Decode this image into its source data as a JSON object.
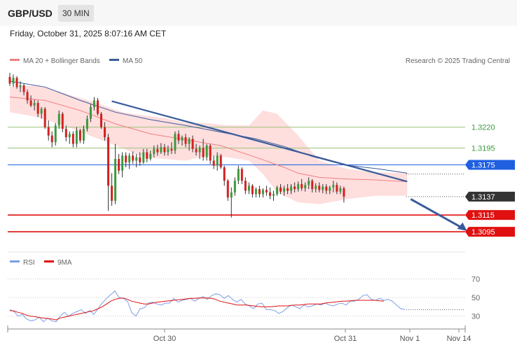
{
  "header": {
    "symbol": "GBP/USD",
    "timeframe": "30 MIN",
    "datetime": "Friday, October 31, 2025 8:07:16 AM CET"
  },
  "legend": {
    "ma20_label": "MA 20 + Bollinger Bands",
    "ma50_label": "MA 50",
    "credit": "Research © 2025 Trading Central",
    "rsi_label": "RSI",
    "rsi_ma_label": "9MA"
  },
  "colors": {
    "bull": "#3c9a3c",
    "bear": "#d32020",
    "ma20": "#f08080",
    "ma50": "#3a5b9a",
    "band_fill": "#ffdede",
    "support": "#e01010",
    "pivot": "#1f5fe0",
    "resistance": "#9cc37a",
    "current": "#333333",
    "trend": "#3a5b9a",
    "rsi": "#7c9ee6",
    "rsi_ma": "#e01010"
  },
  "chart_data": {
    "type": "candlestick",
    "series_note": "Price candles estimated from the figure",
    "ylim": [
      1.3075,
      1.329
    ],
    "levels": [
      {
        "value": 1.322,
        "label": "1.3220",
        "kind": "resistance"
      },
      {
        "value": 1.3195,
        "label": "1.3195",
        "kind": "resistance"
      },
      {
        "value": 1.3175,
        "label": "1.3175",
        "kind": "pivot"
      },
      {
        "value": 1.3137,
        "label": "1.3137",
        "kind": "current"
      },
      {
        "value": 1.3115,
        "label": "1.3115",
        "kind": "support"
      },
      {
        "value": 1.3095,
        "label": "1.3095",
        "kind": "support"
      }
    ],
    "x_ticks": [
      "Oct 30",
      "Oct 31",
      "Nov 1",
      "Nov 14"
    ],
    "candles": [
      [
        1.328,
        1.3285,
        1.3269,
        1.3272
      ],
      [
        1.3272,
        1.3283,
        1.3268,
        1.3279
      ],
      [
        1.3279,
        1.3281,
        1.3266,
        1.3268
      ],
      [
        1.3268,
        1.3275,
        1.3262,
        1.327
      ],
      [
        1.327,
        1.3272,
        1.3258,
        1.3262
      ],
      [
        1.3262,
        1.3265,
        1.3248,
        1.3252
      ],
      [
        1.3252,
        1.3258,
        1.3244,
        1.3246
      ],
      [
        1.3246,
        1.3253,
        1.324,
        1.3249
      ],
      [
        1.3249,
        1.3252,
        1.3232,
        1.3236
      ],
      [
        1.3236,
        1.3244,
        1.323,
        1.3242
      ],
      [
        1.3242,
        1.3244,
        1.3218,
        1.322
      ],
      [
        1.322,
        1.3228,
        1.3204,
        1.321
      ],
      [
        1.321,
        1.3215,
        1.3196,
        1.3202
      ],
      [
        1.3202,
        1.3225,
        1.3198,
        1.3222
      ],
      [
        1.3222,
        1.324,
        1.3218,
        1.3236
      ],
      [
        1.3236,
        1.3238,
        1.3214,
        1.3218
      ],
      [
        1.3218,
        1.3222,
        1.3203,
        1.3208
      ],
      [
        1.3208,
        1.3215,
        1.32,
        1.3212
      ],
      [
        1.3212,
        1.3215,
        1.3196,
        1.32
      ],
      [
        1.32,
        1.322,
        1.3196,
        1.3216
      ],
      [
        1.3216,
        1.3218,
        1.3201,
        1.3204
      ],
      [
        1.3204,
        1.3222,
        1.32,
        1.3218
      ],
      [
        1.3218,
        1.3234,
        1.3215,
        1.323
      ],
      [
        1.323,
        1.3248,
        1.3226,
        1.3244
      ],
      [
        1.3244,
        1.3256,
        1.324,
        1.3252
      ],
      [
        1.3252,
        1.3255,
        1.3234,
        1.3236
      ],
      [
        1.3236,
        1.3238,
        1.3218,
        1.322
      ],
      [
        1.322,
        1.3226,
        1.3204,
        1.3208
      ],
      [
        1.3208,
        1.3212,
        1.312,
        1.315
      ],
      [
        1.315,
        1.3165,
        1.3126,
        1.3132
      ],
      [
        1.3132,
        1.32,
        1.3128,
        1.3182
      ],
      [
        1.3182,
        1.3188,
        1.3164,
        1.3168
      ],
      [
        1.3168,
        1.319,
        1.316,
        1.3186
      ],
      [
        1.3186,
        1.319,
        1.3172,
        1.3178
      ],
      [
        1.3178,
        1.3189,
        1.317,
        1.3186
      ],
      [
        1.3186,
        1.3191,
        1.3176,
        1.318
      ],
      [
        1.318,
        1.3188,
        1.3172,
        1.3184
      ],
      [
        1.3184,
        1.319,
        1.3174,
        1.3178
      ],
      [
        1.3178,
        1.3194,
        1.3176,
        1.319
      ],
      [
        1.319,
        1.3194,
        1.3178,
        1.3182
      ],
      [
        1.3182,
        1.3192,
        1.318,
        1.3188
      ],
      [
        1.3188,
        1.3198,
        1.3184,
        1.3194
      ],
      [
        1.3194,
        1.3199,
        1.3186,
        1.319
      ],
      [
        1.319,
        1.3201,
        1.3188,
        1.3196
      ],
      [
        1.3196,
        1.32,
        1.3186,
        1.319
      ],
      [
        1.319,
        1.3198,
        1.3186,
        1.3194
      ],
      [
        1.3194,
        1.3202,
        1.3188,
        1.3192
      ],
      [
        1.3192,
        1.3215,
        1.3188,
        1.3212
      ],
      [
        1.3212,
        1.3216,
        1.32,
        1.3204
      ],
      [
        1.3204,
        1.321,
        1.3198,
        1.3208
      ],
      [
        1.3208,
        1.3212,
        1.3196,
        1.32
      ],
      [
        1.32,
        1.3208,
        1.3192,
        1.3206
      ],
      [
        1.3206,
        1.321,
        1.319,
        1.3194
      ],
      [
        1.3194,
        1.32,
        1.3186,
        1.319
      ],
      [
        1.319,
        1.3198,
        1.3182,
        1.3195
      ],
      [
        1.3195,
        1.3206,
        1.318,
        1.3184
      ],
      [
        1.3184,
        1.32,
        1.318,
        1.3198
      ],
      [
        1.3198,
        1.32,
        1.3176,
        1.318
      ],
      [
        1.318,
        1.3186,
        1.317,
        1.3174
      ],
      [
        1.3174,
        1.319,
        1.3168,
        1.3186
      ],
      [
        1.3186,
        1.3188,
        1.317,
        1.3172
      ],
      [
        1.3172,
        1.3174,
        1.315,
        1.3156
      ],
      [
        1.3156,
        1.3158,
        1.3132,
        1.3136
      ],
      [
        1.3136,
        1.3148,
        1.3112,
        1.3142
      ],
      [
        1.3142,
        1.316,
        1.3138,
        1.3156
      ],
      [
        1.3156,
        1.3174,
        1.3152,
        1.317
      ],
      [
        1.317,
        1.3172,
        1.3152,
        1.3156
      ],
      [
        1.3156,
        1.316,
        1.314,
        1.3144
      ],
      [
        1.3144,
        1.3154,
        1.314,
        1.315
      ],
      [
        1.315,
        1.3152,
        1.3136,
        1.314
      ],
      [
        1.314,
        1.3148,
        1.3136,
        1.3146
      ],
      [
        1.3146,
        1.315,
        1.3136,
        1.314
      ],
      [
        1.314,
        1.3147,
        1.3136,
        1.3145
      ],
      [
        1.3145,
        1.315,
        1.3138,
        1.3142
      ],
      [
        1.3142,
        1.3148,
        1.3134,
        1.3138
      ],
      [
        1.3138,
        1.3144,
        1.3132,
        1.314
      ],
      [
        1.314,
        1.315,
        1.3138,
        1.3148
      ],
      [
        1.3148,
        1.3152,
        1.314,
        1.3143
      ],
      [
        1.3143,
        1.315,
        1.3138,
        1.3147
      ],
      [
        1.3147,
        1.3152,
        1.314,
        1.3144
      ],
      [
        1.3144,
        1.3152,
        1.314,
        1.3149
      ],
      [
        1.3149,
        1.3154,
        1.3142,
        1.3146
      ],
      [
        1.3146,
        1.3155,
        1.3143,
        1.3152
      ],
      [
        1.3152,
        1.3158,
        1.3144,
        1.3147
      ],
      [
        1.3147,
        1.3154,
        1.3143,
        1.3151
      ],
      [
        1.3151,
        1.316,
        1.3146,
        1.3156
      ],
      [
        1.3156,
        1.3158,
        1.3142,
        1.3146
      ],
      [
        1.3146,
        1.3153,
        1.3142,
        1.315
      ],
      [
        1.315,
        1.3154,
        1.3142,
        1.3145
      ],
      [
        1.3145,
        1.3152,
        1.3141,
        1.3149
      ],
      [
        1.3149,
        1.3152,
        1.314,
        1.3144
      ],
      [
        1.3144,
        1.315,
        1.314,
        1.3148
      ],
      [
        1.3148,
        1.3156,
        1.3142,
        1.3151
      ],
      [
        1.3151,
        1.3154,
        1.314,
        1.3143
      ],
      [
        1.3143,
        1.315,
        1.314,
        1.3147
      ],
      [
        1.3147,
        1.3149,
        1.313,
        1.3137
      ]
    ],
    "ma20": [
      [
        0,
        1.3256
      ],
      [
        10,
        1.3252
      ],
      [
        20,
        1.324
      ],
      [
        30,
        1.3224
      ],
      [
        40,
        1.3212
      ],
      [
        50,
        1.3205
      ],
      [
        60,
        1.3198
      ],
      [
        70,
        1.3184
      ],
      [
        78,
        1.3172
      ],
      [
        82,
        1.3165
      ],
      [
        88,
        1.316
      ],
      [
        96,
        1.3158
      ],
      [
        104,
        1.3157
      ],
      [
        108,
        1.3156
      ],
      [
        113,
        1.3155
      ]
    ],
    "ma50": [
      [
        0,
        1.3275
      ],
      [
        10,
        1.3268
      ],
      [
        20,
        1.3252
      ],
      [
        30,
        1.3238
      ],
      [
        40,
        1.3229
      ],
      [
        50,
        1.3222
      ],
      [
        60,
        1.3214
      ],
      [
        70,
        1.3206
      ],
      [
        78,
        1.3197
      ],
      [
        86,
        1.3185
      ],
      [
        95,
        1.3175
      ],
      [
        105,
        1.317
      ],
      [
        113,
        1.3165
      ]
    ],
    "band_upper": [
      [
        0,
        1.3268
      ],
      [
        8,
        1.327
      ],
      [
        16,
        1.326
      ],
      [
        24,
        1.325
      ],
      [
        32,
        1.3238
      ],
      [
        38,
        1.3234
      ],
      [
        44,
        1.3231
      ],
      [
        50,
        1.3225
      ],
      [
        56,
        1.3225
      ],
      [
        62,
        1.3222
      ],
      [
        68,
        1.3222
      ],
      [
        72,
        1.324
      ],
      [
        76,
        1.3236
      ],
      [
        82,
        1.321
      ],
      [
        88,
        1.318
      ],
      [
        96,
        1.317
      ],
      [
        104,
        1.3166
      ],
      [
        113,
        1.3165
      ]
    ],
    "band_lower": [
      [
        0,
        1.3238
      ],
      [
        8,
        1.3232
      ],
      [
        16,
        1.3221
      ],
      [
        24,
        1.3208
      ],
      [
        32,
        1.3195
      ],
      [
        38,
        1.3184
      ],
      [
        44,
        1.3182
      ],
      [
        50,
        1.318
      ],
      [
        56,
        1.3186
      ],
      [
        62,
        1.3184
      ],
      [
        68,
        1.318
      ],
      [
        72,
        1.3164
      ],
      [
        76,
        1.3142
      ],
      [
        82,
        1.313
      ],
      [
        88,
        1.3128
      ],
      [
        96,
        1.3134
      ],
      [
        104,
        1.3138
      ],
      [
        113,
        1.3138
      ]
    ],
    "trendline": [
      [
        29,
        1.3251
      ],
      [
        113,
        1.3155
      ]
    ],
    "forecast_arrow": [
      [
        114,
        1.3134
      ],
      [
        126,
        1.3096
      ]
    ],
    "rsi": {
      "ylim": [
        20,
        80
      ],
      "ticks": [
        70,
        50,
        30
      ],
      "values": [
        37,
        35,
        30,
        32,
        27,
        25,
        26,
        29,
        24,
        28,
        25,
        24,
        30,
        34,
        30,
        33,
        35,
        37,
        33,
        36,
        32,
        38,
        44,
        49,
        53,
        57,
        50,
        49,
        46,
        34,
        30,
        38,
        39,
        44,
        45,
        43,
        42,
        44,
        44,
        49,
        45,
        47,
        48,
        49,
        46,
        49,
        51,
        48,
        52,
        54,
        53,
        49,
        52,
        48,
        45,
        48,
        43,
        41,
        38,
        43,
        44,
        37,
        37,
        36,
        33,
        35,
        39,
        42,
        40,
        38,
        42,
        40,
        41,
        43,
        42,
        44,
        42,
        41,
        43,
        44,
        42,
        46,
        46,
        48,
        52,
        53,
        48,
        47,
        49,
        47,
        48,
        46,
        42,
        38,
        37
      ],
      "ma": [
        36,
        35.5,
        34,
        33,
        31,
        30,
        29.5,
        28.5,
        28,
        27.5,
        27,
        26,
        28,
        29,
        30,
        31,
        32,
        33,
        34,
        35,
        36,
        38,
        40,
        43,
        46,
        48,
        49,
        49.5,
        48,
        46,
        45,
        44,
        43,
        43,
        44,
        45,
        45.5,
        46,
        46.5,
        47,
        47.5,
        48,
        48.5,
        49,
        49,
        49.5,
        49.5,
        49.5,
        49,
        48,
        46,
        45,
        44,
        43,
        42,
        42,
        42,
        41.5,
        41,
        40.5,
        40,
        40,
        40,
        40.5,
        41,
        41,
        41,
        41.5,
        42,
        42,
        42.5,
        43,
        43,
        43,
        43,
        44,
        44.5,
        45,
        45.5,
        46,
        46,
        46.5,
        47,
        47,
        47,
        47,
        47,
        47,
        46.5,
        46
      ]
    }
  }
}
